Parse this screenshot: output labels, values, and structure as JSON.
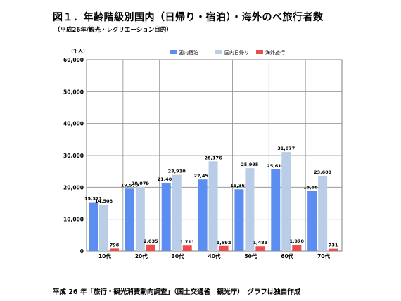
{
  "title": "図１．年齢階級別国内（日帰り・宿泊）・海外のべ旅行者数",
  "subtitle": "（平成26年/観光・レクリエーション目的）",
  "unit": "（千人）",
  "source": "平成 26 年「旅行・観光消費動向調査」（国土交通省　観光庁）　グラフは独自作成",
  "chart_data": {
    "type": "bar",
    "categories": [
      "10代",
      "20代",
      "30代",
      "40代",
      "50代",
      "60代",
      "70代"
    ],
    "series": [
      {
        "name": "国内宿泊",
        "color": "#5b8ef0",
        "values": [
          15321,
          19570,
          21400,
          22453,
          19362,
          25618,
          18884
        ]
      },
      {
        "name": "国内日帰り",
        "color": "#b9cde6",
        "values": [
          14508,
          20079,
          23910,
          28176,
          25995,
          31077,
          23609
        ]
      },
      {
        "name": "海外旅行",
        "color": "#ee4b4b",
        "values": [
          798,
          2035,
          1711,
          1592,
          1489,
          1970,
          731
        ]
      }
    ],
    "ylim": [
      0,
      60000
    ],
    "yticks": [
      "0",
      "10,000",
      "20,000",
      "30,000",
      "40,000",
      "50,000",
      "60,000"
    ],
    "data_labels": [
      [
        "15,321",
        "19,570",
        "21,400",
        "22,453",
        "19,362",
        "25,618",
        "18,884"
      ],
      [
        "14,508",
        "20,079",
        "23,910",
        "28,176",
        "25,995",
        "31,077",
        "23,609"
      ],
      [
        "798",
        "2,035",
        "1,711",
        "1,592",
        "1,489",
        "1,970",
        "731"
      ]
    ],
    "legend_position": "top",
    "grid": true
  }
}
